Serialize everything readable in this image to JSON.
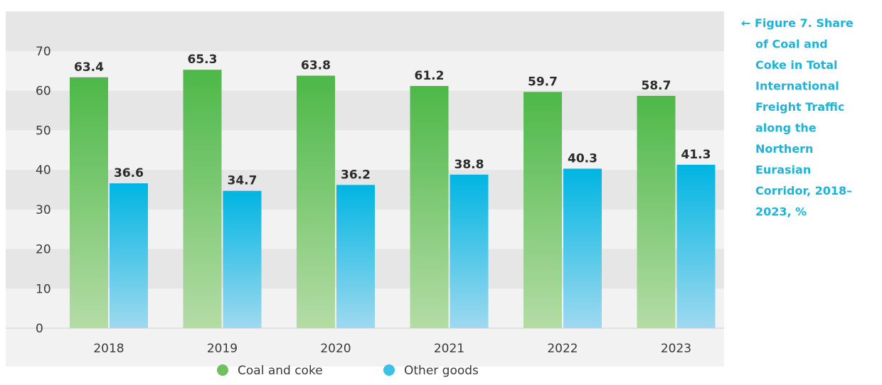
{
  "chart_data": {
    "type": "bar",
    "title": "← Figure 7. Share of Coal and Coke in Total International Freight Traffic along the Northern Eurasian Corridor, 2018–2023, %",
    "title_lines": [
      "← Figure 7. Share",
      "of Coal and",
      "Coke in Total",
      "International",
      "Freight Traffic",
      "along the",
      "Northern",
      "Eurasian",
      "Corridor, 2018–",
      "2023, %"
    ],
    "categories": [
      "2018",
      "2019",
      "2020",
      "2021",
      "2022",
      "2023"
    ],
    "series": [
      {
        "name": "Coal and coke",
        "values": [
          63.4,
          65.3,
          63.8,
          61.2,
          59.7,
          58.7
        ],
        "color": "#52b848"
      },
      {
        "name": "Other goods",
        "values": [
          36.6,
          34.7,
          36.2,
          38.8,
          40.3,
          41.3
        ],
        "color": "#00b5e2"
      }
    ],
    "data_labels": [
      [
        "63.4",
        "65.3",
        "63.8",
        "61.2",
        "59.7",
        "58.7"
      ],
      [
        "36.6",
        "34.7",
        "36.2",
        "38.8",
        "40.3",
        "41.3"
      ]
    ],
    "yticks": [
      "0",
      "10",
      "20",
      "30",
      "40",
      "50",
      "60",
      "70"
    ],
    "ylim": [
      0,
      70
    ],
    "xlabel": "",
    "ylabel": "",
    "grid": "alternating horizontal bands",
    "legend_position": "bottom-center",
    "colors": {
      "band_dark": "#e6e6e6",
      "band_light": "#f2f2f2",
      "caption": "#1fb3d6"
    }
  }
}
